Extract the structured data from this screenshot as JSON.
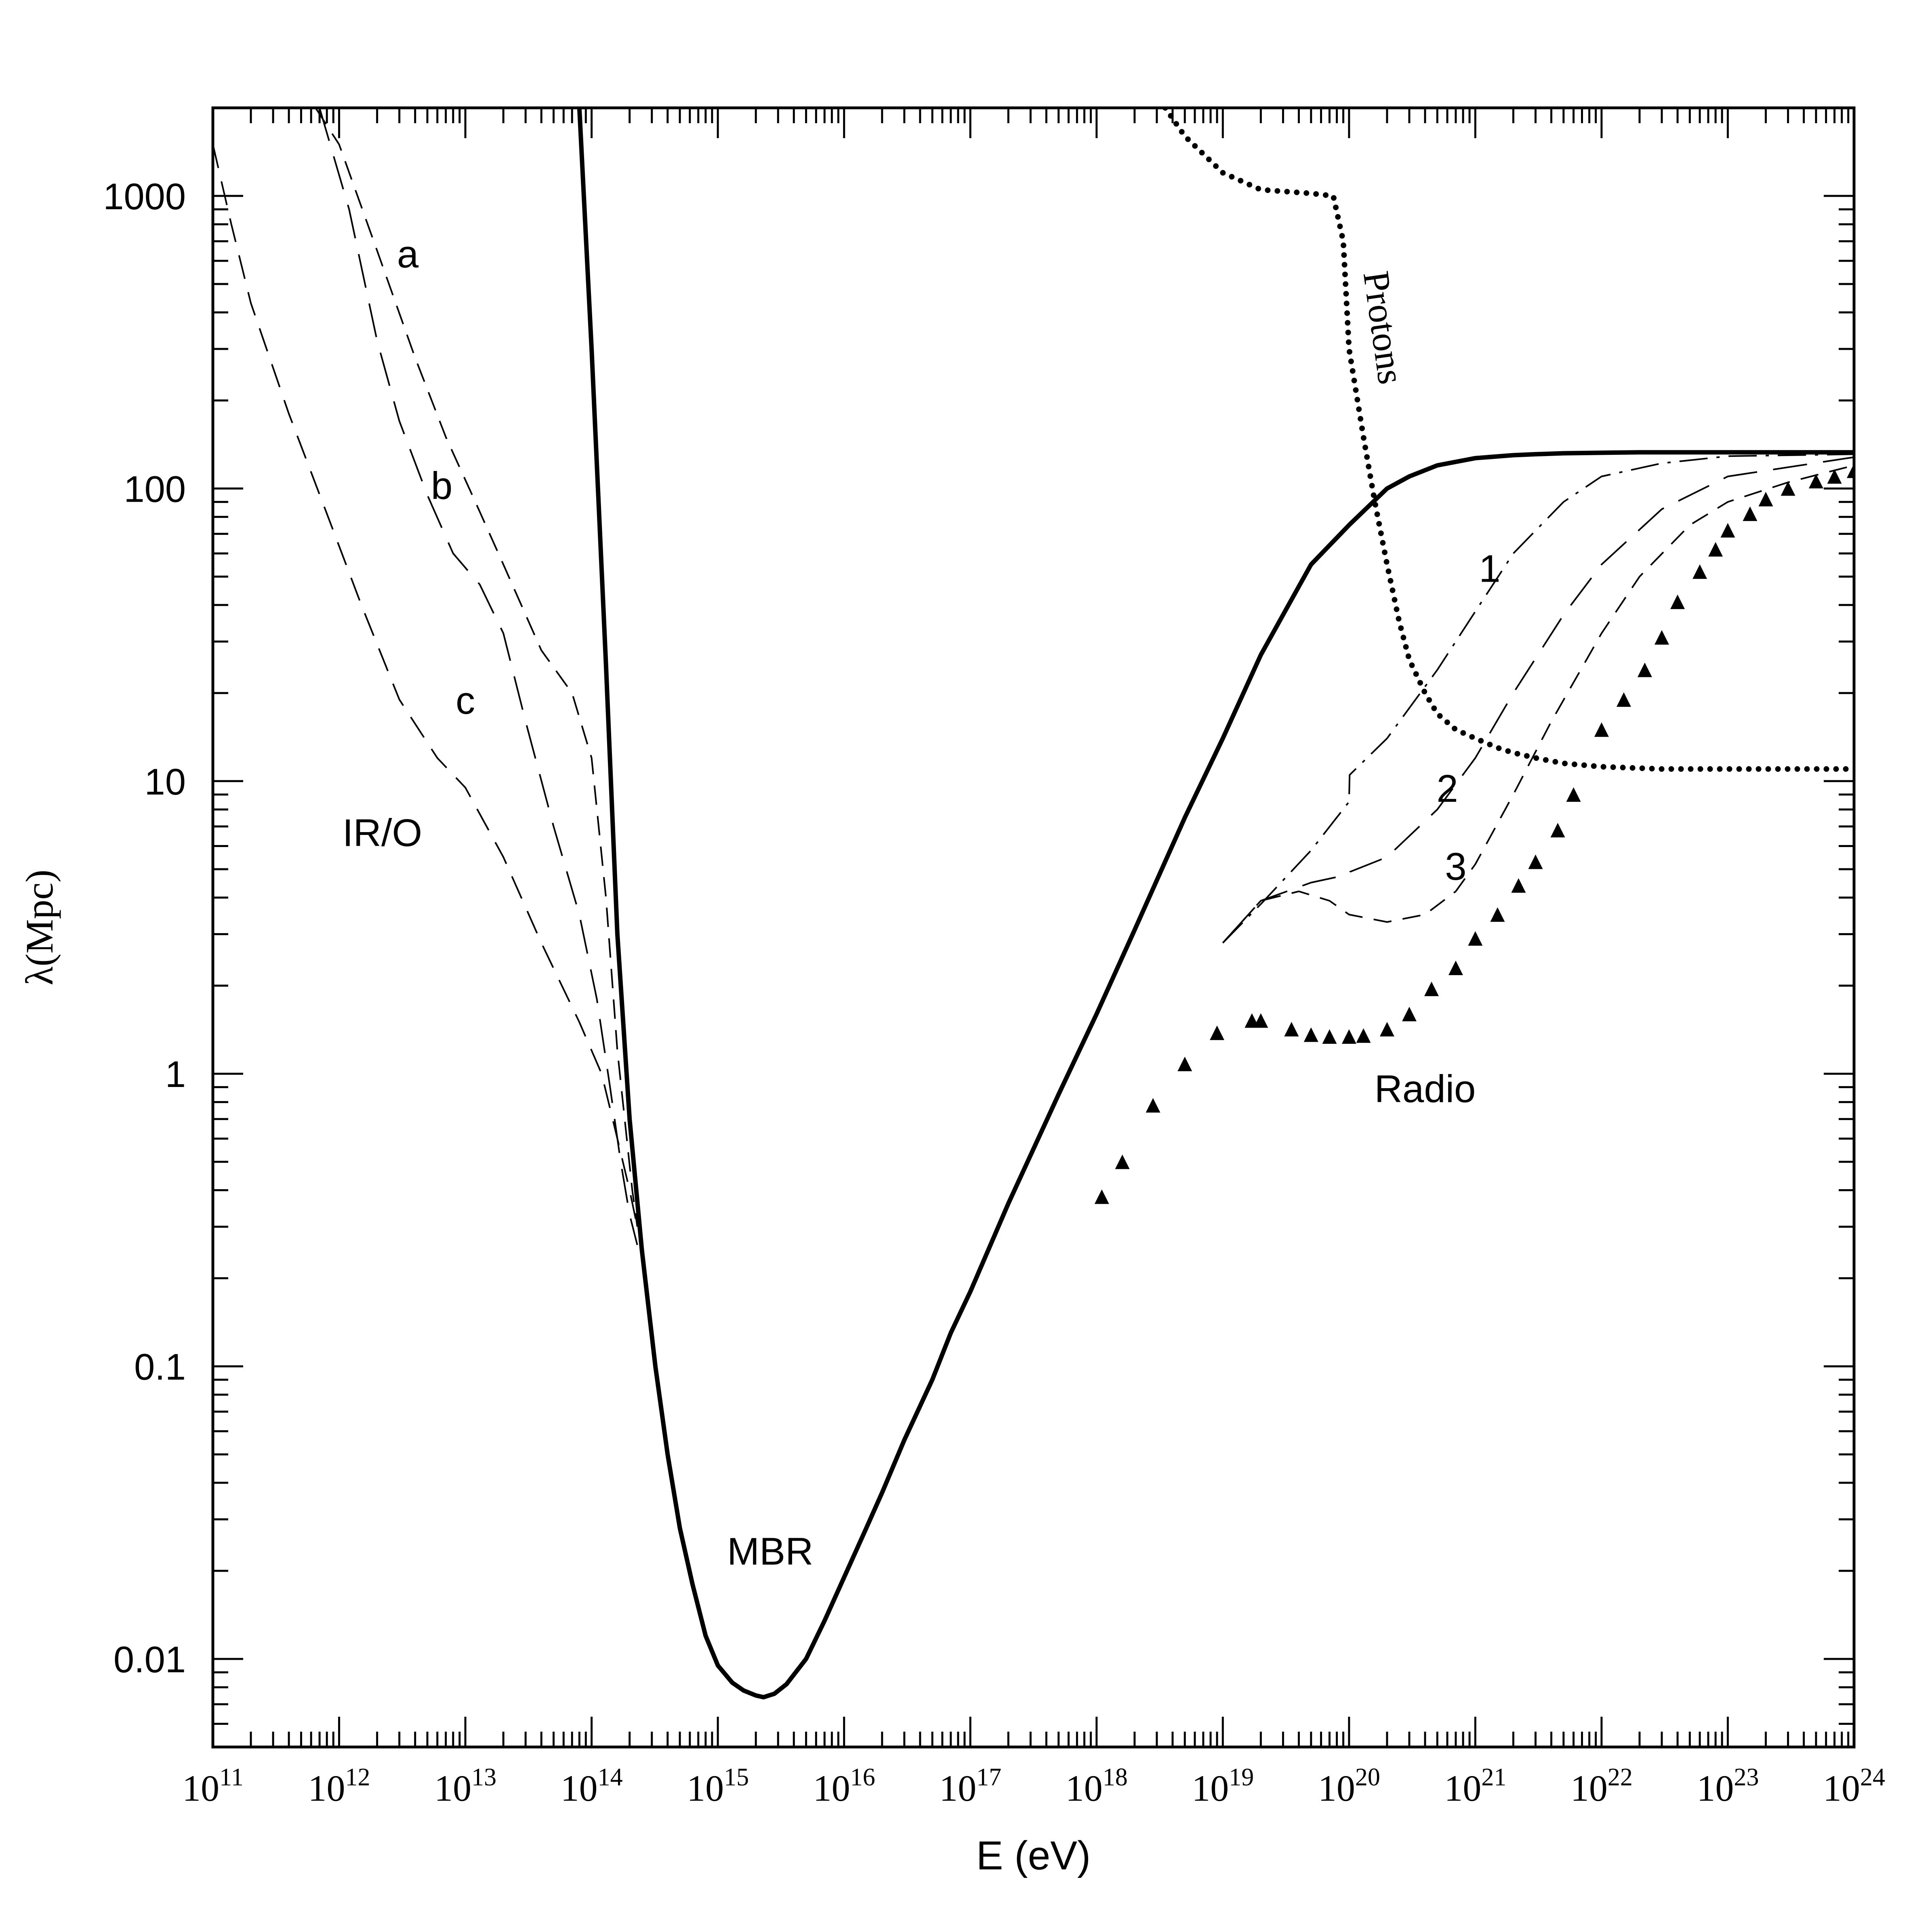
{
  "chart_data": {
    "type": "line",
    "xlabel": "E (eV)",
    "ylabel": "λ(Mpc)",
    "x_scale": "log",
    "y_scale": "log",
    "xlim": [
      100000000000.0,
      1e+24
    ],
    "ylim": [
      0.005,
      2000
    ],
    "grid": false,
    "legend": "none",
    "x_tick_labels": [
      {
        "base": "10",
        "exp": "11",
        "value": 100000000000.0
      },
      {
        "base": "10",
        "exp": "12",
        "value": 1000000000000.0
      },
      {
        "base": "10",
        "exp": "13",
        "value": 10000000000000.0
      },
      {
        "base": "10",
        "exp": "14",
        "value": 100000000000000.0
      },
      {
        "base": "10",
        "exp": "15",
        "value": 1000000000000000.0
      },
      {
        "base": "10",
        "exp": "16",
        "value": 1e+16
      },
      {
        "base": "10",
        "exp": "17",
        "value": 1e+17
      },
      {
        "base": "10",
        "exp": "18",
        "value": 1e+18
      },
      {
        "base": "10",
        "exp": "19",
        "value": 1e+19
      },
      {
        "base": "10",
        "exp": "20",
        "value": 1e+20
      },
      {
        "base": "10",
        "exp": "21",
        "value": 1e+21
      },
      {
        "base": "10",
        "exp": "22",
        "value": 1e+22
      },
      {
        "base": "10",
        "exp": "23",
        "value": 1e+23
      },
      {
        "base": "10",
        "exp": "24",
        "value": 1e+24
      }
    ],
    "y_tick_labels": [
      {
        "label": "0.01",
        "value": 0.01
      },
      {
        "label": "0.1",
        "value": 0.1
      },
      {
        "label": "1",
        "value": 1
      },
      {
        "label": "10",
        "value": 10
      },
      {
        "label": "100",
        "value": 100
      },
      {
        "label": "1000",
        "value": 1000
      }
    ],
    "series": [
      {
        "id": "mbr",
        "style": "solid-thick",
        "x": [
          80000000000000.0,
          100000000000000.0,
          130000000000000.0,
          160000000000000.0,
          200000000000000.0,
          250000000000000.0,
          320000000000000.0,
          400000000000000.0,
          500000000000000.0,
          630000000000000.0,
          800000000000000.0,
          1000000000000000.0,
          1300000000000000.0,
          1600000000000000.0,
          2000000000000000.0,
          2300000000000000.0,
          2800000000000000.0,
          3500000000000000.0,
          5000000000000000.0,
          7000000000000000.0,
          1e+16,
          1.5e+16,
          2e+16,
          3e+16,
          5e+16,
          7e+16,
          1e+17,
          2e+17,
          5e+17,
          1e+18,
          2e+18,
          5e+18,
          1e+19,
          2e+19,
          3e+19,
          5e+19,
          1e+20,
          2e+20,
          3e+20,
          5e+20,
          1e+21,
          2e+21,
          3e+21,
          5e+21,
          1e+22,
          2e+22,
          5e+22,
          1e+23,
          1e+24
        ],
        "y": [
          2000,
          300,
          25,
          3,
          0.7,
          0.25,
          0.1,
          0.05,
          0.028,
          0.018,
          0.012,
          0.0095,
          0.0083,
          0.0078,
          0.0075,
          0.0074,
          0.0076,
          0.0082,
          0.01,
          0.0135,
          0.019,
          0.028,
          0.037,
          0.056,
          0.09,
          0.13,
          0.18,
          0.36,
          0.85,
          1.6,
          3.1,
          7.5,
          14,
          27,
          37,
          55,
          75,
          100,
          110,
          120,
          127,
          130,
          131,
          132,
          132.5,
          133,
          133,
          133,
          133
        ]
      },
      {
        "id": "radio-1",
        "style": "dash-dot",
        "x": [
          1e+19,
          2e+19,
          5e+19,
          1e+20,
          1.01e+20,
          2e+20,
          5e+20,
          1e+21,
          2e+21,
          5e+21,
          1e+22,
          3e+22,
          1e+23,
          1e+24
        ],
        "y": [
          2.8,
          3.8,
          5.8,
          8.5,
          10.5,
          14,
          24,
          38,
          60,
          90,
          110,
          122,
          129,
          131
        ]
      },
      {
        "id": "radio-2",
        "style": "long-dash",
        "x": [
          1e+19,
          2e+19,
          5e+19,
          1e+20,
          1.02e+20,
          2e+20,
          5e+20,
          1e+21,
          2e+21,
          5e+21,
          1e+22,
          3e+22,
          1e+23,
          1e+24
        ],
        "y": [
          2.8,
          3.9,
          4.5,
          4.8,
          4.9,
          5.5,
          8,
          12,
          20,
          37,
          55,
          85,
          110,
          128
        ]
      },
      {
        "id": "radio-3",
        "style": "short-dash",
        "x": [
          1e+19,
          2e+19,
          4e+19,
          7e+19,
          1e+20,
          2e+20,
          4e+20,
          7e+20,
          1e+21,
          2e+21,
          4e+21,
          1e+22,
          2e+22,
          5e+22,
          1e+23,
          3e+23,
          1e+24
        ],
        "y": [
          2.8,
          3.9,
          4.2,
          3.9,
          3.5,
          3.3,
          3.5,
          4.2,
          5.2,
          9,
          16,
          32,
          50,
          75,
          90,
          105,
          120
        ]
      },
      {
        "id": "radio-triangles",
        "style": "triangles",
        "x": [
          1.1e+18,
          1.6e+18,
          2.8e+18,
          5e+18,
          9e+18,
          1.7e+19,
          2e+19,
          3.5e+19,
          5e+19,
          7e+19,
          1e+20,
          1.3e+20,
          2e+20,
          3e+20,
          4.5e+20,
          7e+20,
          1e+21,
          1.5e+21,
          2.2e+21,
          3e+21,
          4.5e+21,
          6e+21,
          1e+22,
          1.5e+22,
          2.2e+22,
          3e+22,
          4e+22,
          6e+22,
          8e+22,
          1e+23,
          1.5e+23,
          2e+23,
          3e+23,
          5e+23,
          7e+23,
          1e+24
        ],
        "y": [
          0.38,
          0.5,
          0.78,
          1.08,
          1.38,
          1.52,
          1.52,
          1.42,
          1.36,
          1.34,
          1.34,
          1.35,
          1.42,
          1.6,
          1.95,
          2.3,
          2.9,
          3.5,
          4.4,
          5.3,
          6.8,
          9,
          15,
          19,
          24,
          31,
          41,
          52,
          62,
          72,
          82,
          92,
          100,
          106,
          110,
          115
        ]
      },
      {
        "id": "protons",
        "style": "dotted",
        "x": [
          3.5e+18,
          5e+18,
          1e+19,
          2e+19,
          5e+19,
          7.5e+19,
          9e+19,
          1e+20,
          1.3e+20,
          1.6e+20,
          2e+20,
          2.5e+20,
          3e+20,
          4e+20,
          5e+20,
          7e+20,
          1e+21,
          1.5e+21,
          2e+21,
          3e+21,
          5e+21,
          1e+22,
          3e+22,
          1e+23,
          1e+24
        ],
        "y": [
          2000,
          1600,
          1200,
          1050,
          1020,
          1000,
          700,
          300,
          150,
          90,
          55,
          35,
          26,
          20,
          17,
          15,
          14,
          13,
          12.5,
          12,
          11.5,
          11.2,
          11,
          11,
          11
        ]
      },
      {
        "id": "iro-a",
        "style": "iro-dash-a",
        "x": [
          650000000000.0,
          1000000000000.0,
          2000000000000.0,
          4000000000000.0,
          7000000000000.0,
          12000000000000.0,
          20000000000000.0,
          40000000000000.0,
          70000000000000.0,
          100000000000000.0,
          130000000000000.0,
          160000000000000.0,
          190000000000000.0,
          210000000000000.0,
          230000000000000.0
        ],
        "y": [
          2000,
          1500,
          650,
          280,
          150,
          90,
          55,
          28,
          20,
          12,
          4,
          1.2,
          0.6,
          0.4,
          0.3
        ]
      },
      {
        "id": "iro-b",
        "style": "iro-dash-b",
        "x": [
          700000000000.0,
          1200000000000.0,
          2000000000000.0,
          3000000000000.0,
          5000000000000.0,
          8000000000000.0,
          13000000000000.0,
          20000000000000.0,
          30000000000000.0,
          50000000000000.0,
          80000000000000.0,
          110000000000000.0,
          140000000000000.0,
          170000000000000.0,
          200000000000000.0,
          230000000000000.0
        ],
        "y": [
          2000,
          900,
          320,
          170,
          95,
          60,
          47,
          32,
          16,
          7,
          3.5,
          1.8,
          0.9,
          0.5,
          0.33,
          0.26
        ]
      },
      {
        "id": "iro-c",
        "style": "iro-dash-c",
        "x": [
          100000000000.0,
          140000000000.0,
          200000000000.0,
          400000000000.0,
          800000000000.0,
          1500000000000.0,
          3000000000000.0,
          6000000000000.0,
          10000000000000.0,
          20000000000000.0,
          40000000000000.0,
          80000000000000.0,
          120000000000000.0,
          160000000000000.0,
          200000000000000.0,
          230000000000000.0
        ],
        "y": [
          1500,
          800,
          430,
          180,
          82,
          40,
          19,
          12,
          9.5,
          5.5,
          2.8,
          1.5,
          1.0,
          0.6,
          0.4,
          0.3
        ]
      }
    ],
    "annotations": [
      {
        "id": "mbr",
        "text": "MBR",
        "x": 2600000000000000.0,
        "y": 0.021
      },
      {
        "id": "iro",
        "text": "IR/O",
        "x": 2200000000000.0,
        "y": 6.0
      },
      {
        "id": "radio",
        "text": "Radio",
        "x": 4e+20,
        "y": 0.8
      },
      {
        "id": "protons",
        "text": "Protons",
        "x": 1.5e+20,
        "y": 350
      },
      {
        "id": "a",
        "text": "a",
        "x": 3500000000000.0,
        "y": 570
      },
      {
        "id": "b",
        "text": "b",
        "x": 6500000000000.0,
        "y": 92
      },
      {
        "id": "c",
        "text": "c",
        "x": 10000000000000.0,
        "y": 17
      },
      {
        "id": "1",
        "text": "1",
        "x": 1.3e+21,
        "y": 48
      },
      {
        "id": "2",
        "text": "2",
        "x": 6e+20,
        "y": 8.5
      },
      {
        "id": "3",
        "text": "3",
        "x": 7e+20,
        "y": 4.6
      }
    ]
  }
}
